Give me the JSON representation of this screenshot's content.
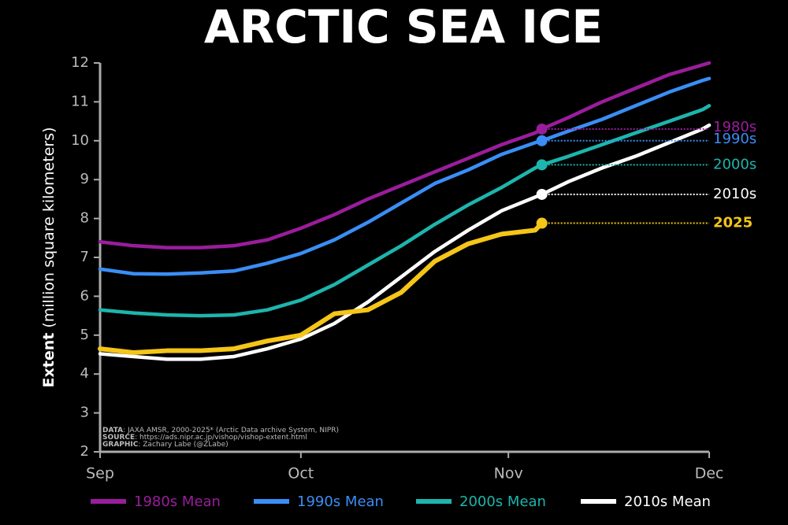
{
  "chart_data": {
    "type": "line",
    "title": "ARCTIC SEA ICE",
    "y_label_bold": "Extent",
    "y_label": "(million square kilometers)",
    "x": [
      0,
      5,
      10,
      15,
      20,
      25,
      30,
      35,
      40,
      45,
      50,
      55,
      60,
      65,
      66,
      70,
      75,
      80,
      85,
      90,
      91
    ],
    "xlim": [
      0,
      91
    ],
    "xticks": [
      {
        "value": 0,
        "label": "Sep"
      },
      {
        "value": 30,
        "label": "Oct"
      },
      {
        "value": 61,
        "label": "Nov"
      },
      {
        "value": 91,
        "label": "Dec"
      }
    ],
    "ylim": [
      2,
      12
    ],
    "yticks": [
      2,
      3,
      4,
      5,
      6,
      7,
      8,
      9,
      10,
      11,
      12
    ],
    "series": [
      {
        "name": "1980s Mean",
        "end_label": "1980s",
        "color": "#9a1d9c",
        "values": [
          7.4,
          7.3,
          7.25,
          7.25,
          7.3,
          7.45,
          7.75,
          8.1,
          8.5,
          8.85,
          9.2,
          9.55,
          9.9,
          10.2,
          10.3,
          10.6,
          11.0,
          11.35,
          11.7,
          11.95,
          12.0
        ]
      },
      {
        "name": "1990s Mean",
        "end_label": "1990s",
        "color": "#3a8ef5",
        "values": [
          6.7,
          6.58,
          6.57,
          6.6,
          6.65,
          6.85,
          7.1,
          7.45,
          7.9,
          8.4,
          8.9,
          9.25,
          9.65,
          9.95,
          10.0,
          10.25,
          10.55,
          10.9,
          11.25,
          11.55,
          11.6
        ]
      },
      {
        "name": "2000s Mean",
        "end_label": "2000s",
        "color": "#1db5ad",
        "values": [
          5.65,
          5.57,
          5.52,
          5.5,
          5.52,
          5.65,
          5.9,
          6.3,
          6.8,
          7.3,
          7.85,
          8.35,
          8.8,
          9.3,
          9.38,
          9.6,
          9.9,
          10.2,
          10.5,
          10.8,
          10.9
        ]
      },
      {
        "name": "2010s Mean",
        "end_label": "2010s",
        "color": "#ffffff",
        "values": [
          4.52,
          4.45,
          4.38,
          4.38,
          4.45,
          4.65,
          4.9,
          5.3,
          5.85,
          6.5,
          7.15,
          7.7,
          8.2,
          8.55,
          8.62,
          8.95,
          9.3,
          9.6,
          9.95,
          10.3,
          10.4
        ]
      },
      {
        "end_label": "2025",
        "color": "#f5c518",
        "values": [
          4.65,
          4.55,
          4.6,
          4.6,
          4.65,
          4.85,
          5.0,
          5.55,
          5.65,
          6.1,
          6.9,
          7.35,
          7.6,
          7.7,
          7.88,
          null,
          null,
          null,
          null,
          null,
          null
        ]
      }
    ],
    "credits": [
      {
        "label": "DATA",
        "text": ": JAXA AMSR, 2000-2025* (Arctic Data archive System, NIPR)"
      },
      {
        "label": "SOURCE",
        "text": ": https://ads.nipr.ac.jp/vishop/vishop-extent.html"
      },
      {
        "label": "GRAPHIC",
        "text": ": Zachary Labe (@ZLabe)"
      }
    ]
  }
}
